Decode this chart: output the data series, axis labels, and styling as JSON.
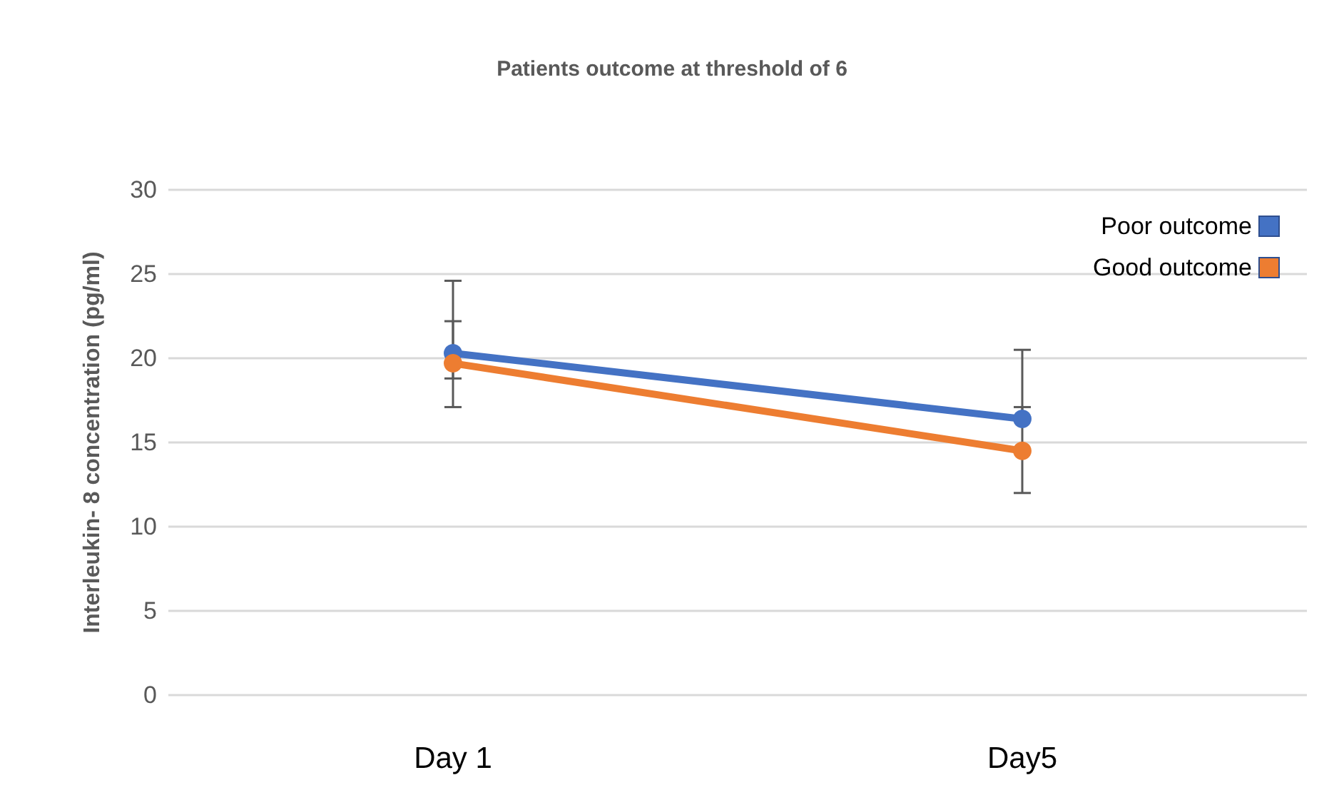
{
  "chart_data": {
    "type": "line",
    "title": "Patients outcome at threshold of 6",
    "ylabel": "Interleukin- 8 concentration (pg/ml)",
    "categories": [
      "Day 1",
      "Day5"
    ],
    "series": [
      {
        "name": "Poor outcome",
        "color": "#4472c4",
        "values": [
          20.3,
          16.4
        ],
        "errors": [
          [
            18.8,
            24.6
          ],
          [
            16.4,
            20.5
          ]
        ]
      },
      {
        "name": "Good outcome",
        "color": "#ed7d31",
        "values": [
          19.7,
          14.5
        ],
        "errors": [
          [
            17.1,
            22.2
          ],
          [
            12.0,
            17.1
          ]
        ]
      }
    ],
    "ylim": [
      0,
      30
    ],
    "yticks": [
      0,
      5,
      10,
      15,
      20,
      25,
      30
    ],
    "grid": "y",
    "legend": "top right",
    "marker": "circle"
  }
}
